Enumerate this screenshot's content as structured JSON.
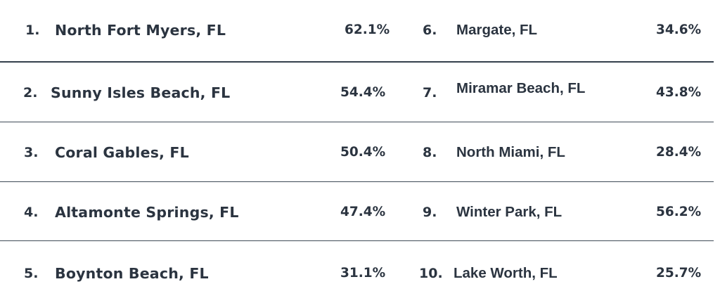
{
  "rankings": [
    {
      "rank": "1.",
      "city": "North Fort Myers, FL",
      "pct": "62.1%"
    },
    {
      "rank": "2.",
      "city": "Sunny Isles Beach, FL",
      "pct": "54.4%"
    },
    {
      "rank": "3.",
      "city": "Coral Gables, FL",
      "pct": "50.4%"
    },
    {
      "rank": "4.",
      "city": "Altamonte Springs, FL",
      "pct": "47.4%"
    },
    {
      "rank": "5.",
      "city": "Boynton Beach, FL",
      "pct": "31.1%"
    },
    {
      "rank": "6.",
      "city": "Margate, FL",
      "pct": "34.6%"
    },
    {
      "rank": "7.",
      "city": "Miramar Beach, FL",
      "pct": "43.8%"
    },
    {
      "rank": "8.",
      "city": "North Miami, FL",
      "pct": "28.4%"
    },
    {
      "rank": "9.",
      "city": "Winter Park, FL",
      "pct": "56.2%"
    },
    {
      "rank": "10.",
      "city": "Lake Worth, FL",
      "pct": "25.7%"
    }
  ]
}
